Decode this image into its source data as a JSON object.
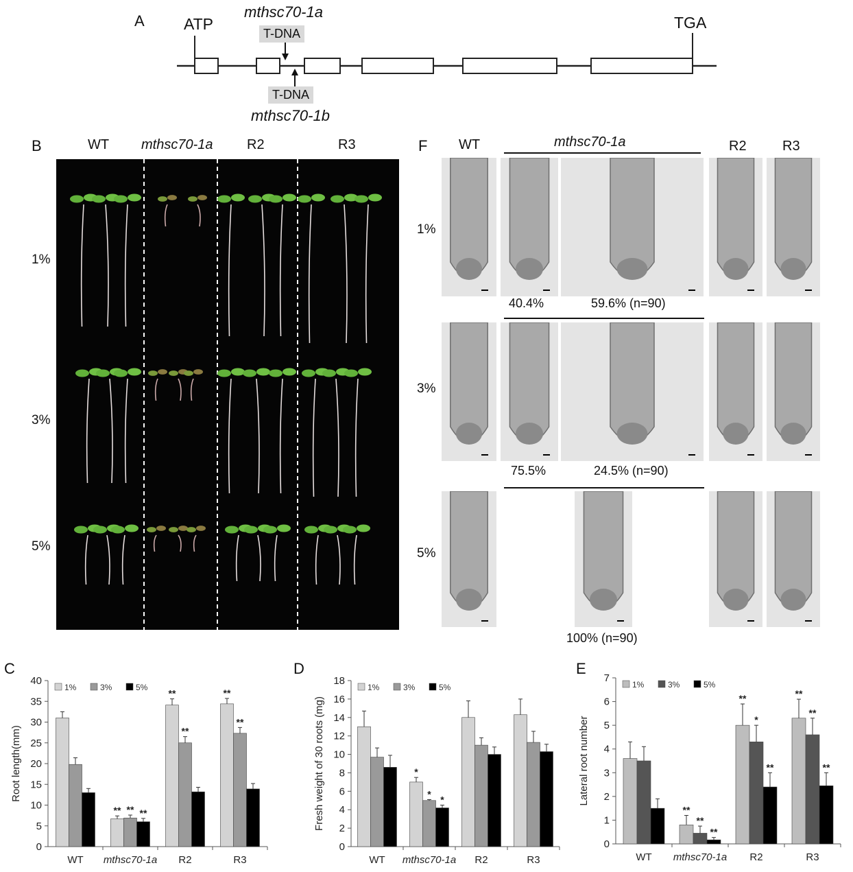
{
  "panel_a": {
    "label": "A",
    "start_codon": "ATP",
    "stop_codon": "TGA",
    "insert_top_allele": "mthsc70-1a",
    "insert_top_label": "T-DNA",
    "insert_bottom_label": "T-DNA",
    "insert_bottom_allele": "mthsc70-1b"
  },
  "panel_b": {
    "label": "B",
    "columns": [
      "WT",
      "mthsc70-1a",
      "R2",
      "R3"
    ],
    "rows": [
      "1%",
      "3%",
      "5%"
    ]
  },
  "panel_f": {
    "label": "F",
    "columns": [
      "WT",
      "mthsc70-1a",
      "R2",
      "R3"
    ],
    "rows": [
      "1%",
      "3%",
      "5%"
    ],
    "pct_1_a": "40.4%",
    "pct_1_b": "59.6% (n=90)",
    "pct_3_a": "75.5%",
    "pct_3_b": "24.5% (n=90)",
    "pct_5": "100% (n=90)"
  },
  "chart_data": [
    {
      "panel": "C",
      "type": "bar",
      "categories": [
        "WT",
        "mthsc70-1a",
        "R2",
        "R3"
      ],
      "ylabel": "Root length(mm)",
      "ylim": [
        0,
        40
      ],
      "yticks": [
        0,
        5,
        10,
        15,
        20,
        25,
        30,
        35,
        40
      ],
      "legend_position": "top-left",
      "series": [
        {
          "name": "1%",
          "color": "#d3d3d3",
          "values": [
            31,
            6.7,
            34.1,
            34.4
          ],
          "errors": [
            1.5,
            0.7,
            1.5,
            1.3
          ],
          "sig": [
            "",
            "**",
            "**",
            "**"
          ]
        },
        {
          "name": "3%",
          "color": "#9a9a9a",
          "values": [
            19.8,
            6.9,
            25.0,
            27.3
          ],
          "errors": [
            1.6,
            0.7,
            1.5,
            1.4
          ],
          "sig": [
            "",
            "**",
            "**",
            "**"
          ]
        },
        {
          "name": "5%",
          "color": "#000000",
          "values": [
            13.0,
            6.0,
            13.2,
            13.9
          ],
          "errors": [
            1.0,
            0.8,
            1.1,
            1.3
          ],
          "sig": [
            "",
            "**",
            "",
            ""
          ]
        }
      ]
    },
    {
      "panel": "D",
      "type": "bar",
      "categories": [
        "WT",
        "mthsc70-1a",
        "R2",
        "R3"
      ],
      "ylabel": "Fresh weight of 30 roots (mg)",
      "ylim": [
        0,
        18
      ],
      "yticks": [
        0,
        2,
        4,
        6,
        8,
        10,
        12,
        14,
        16,
        18
      ],
      "legend_position": "top-left",
      "series": [
        {
          "name": "1%",
          "color": "#d3d3d3",
          "values": [
            13.0,
            7.0,
            14.0,
            14.3
          ],
          "errors": [
            1.7,
            0.5,
            1.8,
            1.7
          ],
          "sig": [
            "",
            "*",
            "",
            ""
          ]
        },
        {
          "name": "3%",
          "color": "#9a9a9a",
          "values": [
            9.7,
            5.0,
            11.0,
            11.3
          ],
          "errors": [
            1.0,
            0.1,
            0.8,
            1.2
          ],
          "sig": [
            "",
            "*",
            "",
            ""
          ]
        },
        {
          "name": "5%",
          "color": "#000000",
          "values": [
            8.6,
            4.2,
            10.0,
            10.3
          ],
          "errors": [
            1.3,
            0.3,
            0.8,
            0.8
          ],
          "sig": [
            "",
            "*",
            "",
            ""
          ]
        }
      ]
    },
    {
      "panel": "E",
      "type": "bar",
      "categories": [
        "WT",
        "mthsc70-1a",
        "R2",
        "R3"
      ],
      "ylabel": "Lateral root number",
      "ylim": [
        0,
        7
      ],
      "yticks": [
        0,
        1,
        2,
        3,
        4,
        5,
        6,
        7
      ],
      "legend_position": "top-left",
      "series": [
        {
          "name": "1%",
          "color": "#bdbdbd",
          "values": [
            3.6,
            0.8,
            5.0,
            5.3
          ],
          "errors": [
            0.7,
            0.4,
            0.9,
            0.8
          ],
          "sig": [
            "",
            "**",
            "**",
            "**"
          ]
        },
        {
          "name": "3%",
          "color": "#555555",
          "values": [
            3.5,
            0.45,
            4.3,
            4.6
          ],
          "errors": [
            0.6,
            0.3,
            0.7,
            0.7
          ],
          "sig": [
            "",
            "**",
            "*",
            "**"
          ]
        },
        {
          "name": "5%",
          "color": "#000000",
          "values": [
            1.5,
            0.17,
            2.4,
            2.45
          ],
          "errors": [
            0.4,
            0.1,
            0.6,
            0.55
          ],
          "sig": [
            "",
            "**",
            "**",
            "**"
          ]
        }
      ]
    }
  ]
}
